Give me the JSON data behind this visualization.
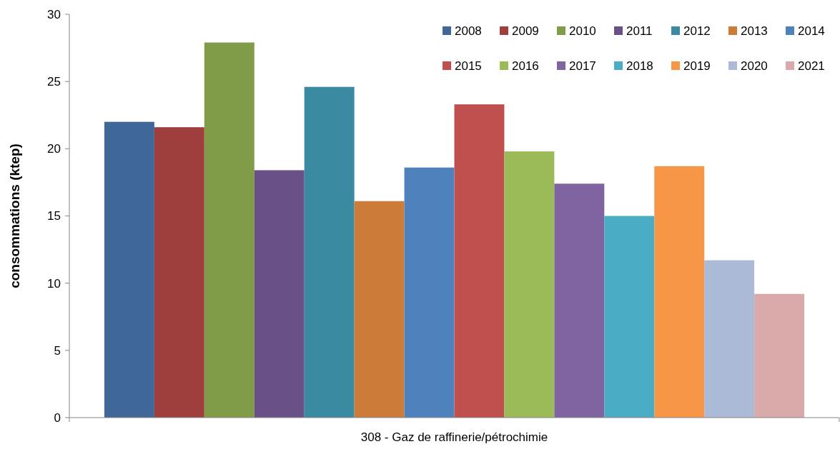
{
  "chart_data": {
    "type": "bar",
    "ylabel": "consommations (ktep)",
    "categories": [
      "308 - Gaz de raffinerie/pétrochimie"
    ],
    "ylim": [
      0,
      30
    ],
    "yticks": [
      0,
      5,
      10,
      15,
      20,
      25,
      30
    ],
    "legend": "top right",
    "series": [
      {
        "name": "2008",
        "color": "#3f6899",
        "values": [
          22.0
        ]
      },
      {
        "name": "2009",
        "color": "#9e3f3d",
        "values": [
          21.6
        ]
      },
      {
        "name": "2010",
        "color": "#809c48",
        "values": [
          27.9
        ]
      },
      {
        "name": "2011",
        "color": "#695087",
        "values": [
          18.4
        ]
      },
      {
        "name": "2012",
        "color": "#3a8ba1",
        "values": [
          24.6
        ]
      },
      {
        "name": "2013",
        "color": "#cc7b38",
        "values": [
          16.1
        ]
      },
      {
        "name": "2014",
        "color": "#4f81bd",
        "values": [
          18.6
        ]
      },
      {
        "name": "2015",
        "color": "#c0504d",
        "values": [
          23.3
        ]
      },
      {
        "name": "2016",
        "color": "#9bbb59",
        "values": [
          19.8
        ]
      },
      {
        "name": "2017",
        "color": "#8064a2",
        "values": [
          17.4
        ]
      },
      {
        "name": "2018",
        "color": "#4bacc6",
        "values": [
          15.0
        ]
      },
      {
        "name": "2019",
        "color": "#f79646",
        "values": [
          18.7
        ]
      },
      {
        "name": "2020",
        "color": "#aabad7",
        "values": [
          11.7
        ]
      },
      {
        "name": "2021",
        "color": "#d9aaa9",
        "values": [
          9.2
        ]
      }
    ]
  }
}
